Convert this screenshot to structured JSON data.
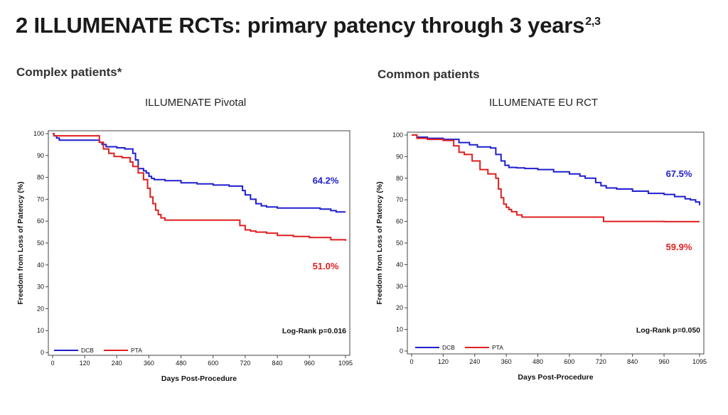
{
  "page": {
    "title": "2 ILLUMENATE RCTs: primary patency through 3 years",
    "title_superscript": "2,3"
  },
  "left_panel": {
    "section_label": "Complex patients*",
    "subtitle": "ILLUMENATE Pivotal"
  },
  "right_panel": {
    "section_label": "Common patients",
    "subtitle": "ILLUMENATE EU RCT"
  },
  "colors": {
    "dcb": "#1f1fd0",
    "pta": "#e01f1f"
  },
  "chart_data": [
    {
      "type": "line",
      "title": "ILLUMENATE Pivotal",
      "xlabel": "Days Post-Procedure",
      "ylabel": "Freedom from Loss of Patency (%)",
      "xlim": [
        0,
        1095
      ],
      "ylim": [
        0,
        100
      ],
      "xticks": [
        0,
        120,
        240,
        360,
        480,
        600,
        720,
        840,
        960,
        1095
      ],
      "yticks": [
        0,
        10,
        20,
        30,
        40,
        50,
        60,
        70,
        80,
        90,
        100
      ],
      "series": [
        {
          "name": "DCB",
          "color": "#1f1fd0",
          "x": [
            0,
            5,
            15,
            25,
            60,
            120,
            175,
            185,
            200,
            240,
            270,
            300,
            310,
            320,
            340,
            350,
            360,
            370,
            380,
            420,
            480,
            540,
            600,
            660,
            700,
            710,
            720,
            740,
            760,
            780,
            800,
            840,
            900,
            960,
            1000,
            1040,
            1060,
            1095
          ],
          "y": [
            100,
            99,
            98,
            97,
            97,
            97,
            96,
            95,
            94,
            93.5,
            93,
            91,
            88,
            84,
            83,
            82,
            80.5,
            79.5,
            79,
            78.5,
            77.5,
            77,
            76.5,
            76,
            76,
            74,
            72,
            70,
            68,
            67,
            66.5,
            66,
            66,
            66,
            65.5,
            64.8,
            64.2,
            64.2
          ]
        },
        {
          "name": "PTA",
          "color": "#e01f1f",
          "x": [
            0,
            5,
            20,
            60,
            120,
            175,
            190,
            210,
            230,
            260,
            290,
            300,
            320,
            340,
            355,
            365,
            375,
            385,
            395,
            405,
            420,
            540,
            660,
            700,
            720,
            740,
            760,
            800,
            840,
            900,
            960,
            1040,
            1095
          ],
          "y": [
            100,
            99,
            99,
            99,
            99,
            96,
            93,
            91,
            89.5,
            89,
            87,
            85,
            82,
            79,
            75,
            71,
            68,
            65,
            63,
            61.5,
            60.5,
            60.5,
            60.5,
            58,
            56,
            55.5,
            55,
            54.5,
            53.5,
            53,
            52.5,
            51.5,
            51.0
          ]
        }
      ],
      "annotations": [
        {
          "text": "64.2%",
          "series": "DCB"
        },
        {
          "text": "51.0%",
          "series": "PTA"
        },
        {
          "text": "Log-Rank p=0.016"
        }
      ],
      "legend": [
        "DCB",
        "PTA"
      ],
      "legend_position": "bottom-left",
      "grid": false
    },
    {
      "type": "line",
      "title": "ILLUMENATE EU RCT",
      "xlabel": "Days Post-Procedure",
      "ylabel": "Freedom from Loss of Patency (%)",
      "xlim": [
        0,
        1095
      ],
      "ylim": [
        0,
        100
      ],
      "xticks": [
        0,
        120,
        240,
        360,
        480,
        600,
        720,
        840,
        960,
        1095
      ],
      "yticks": [
        0,
        10,
        20,
        30,
        40,
        50,
        60,
        70,
        80,
        90,
        100
      ],
      "series": [
        {
          "name": "DCB",
          "color": "#1f1fd0",
          "x": [
            0,
            20,
            60,
            120,
            180,
            220,
            250,
            300,
            320,
            340,
            355,
            370,
            400,
            430,
            480,
            540,
            600,
            640,
            660,
            700,
            720,
            740,
            780,
            840,
            900,
            960,
            1000,
            1040,
            1060,
            1080,
            1095
          ],
          "y": [
            100,
            99,
            98.5,
            98,
            96.5,
            95.5,
            94.5,
            94,
            91,
            88,
            86,
            85,
            84.8,
            84.5,
            84,
            83,
            82,
            81,
            80,
            78,
            76.5,
            75.5,
            75,
            74,
            73,
            72.5,
            71.5,
            70.5,
            70,
            69,
            67.5
          ]
        },
        {
          "name": "PTA",
          "color": "#e01f1f",
          "x": [
            0,
            20,
            60,
            120,
            160,
            180,
            200,
            230,
            260,
            290,
            320,
            330,
            340,
            350,
            360,
            370,
            380,
            400,
            420,
            480,
            600,
            700,
            730,
            760,
            840,
            960,
            1095
          ],
          "y": [
            100,
            98.5,
            98,
            97.5,
            95,
            92,
            91,
            88,
            84,
            82,
            80,
            75,
            71,
            68,
            66.5,
            65.5,
            64.5,
            63,
            62,
            62,
            62,
            62,
            60,
            60,
            60,
            59.9,
            59.9
          ]
        }
      ],
      "annotations": [
        {
          "text": "67.5%",
          "series": "DCB"
        },
        {
          "text": "59.9%",
          "series": "PTA"
        },
        {
          "text": "Log-Rank p=0.050"
        }
      ],
      "legend": [
        "DCB",
        "PTA"
      ],
      "legend_position": "bottom-left",
      "grid": false
    }
  ]
}
